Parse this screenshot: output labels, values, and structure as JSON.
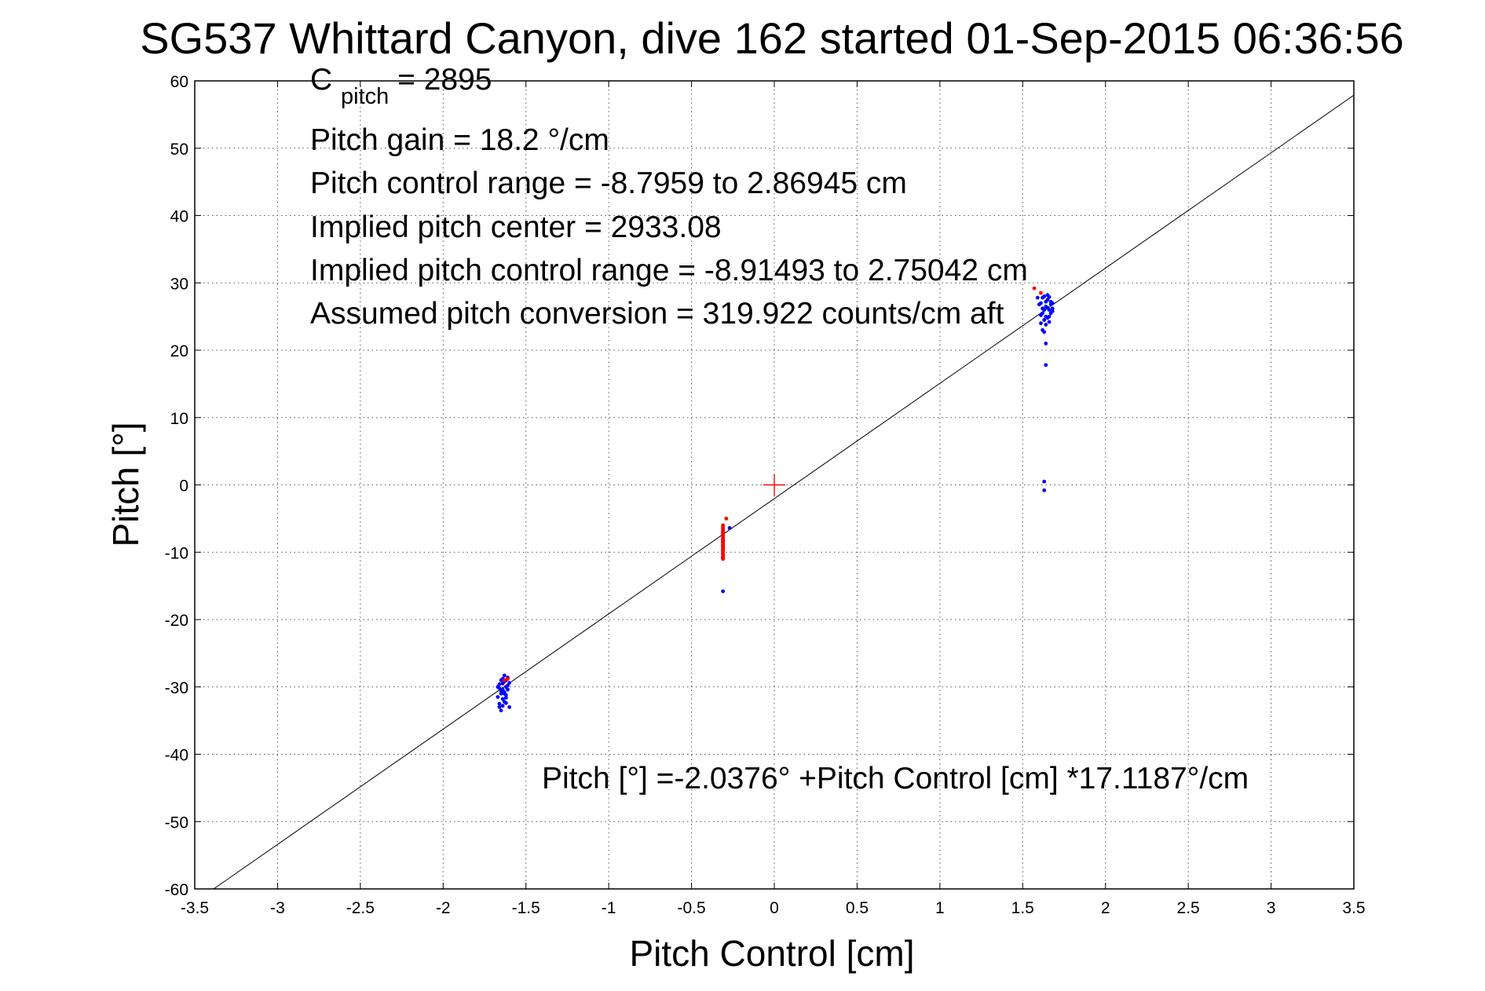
{
  "chart_data": {
    "type": "scatter",
    "title": "SG537 Whittard Canyon, dive 162 started 01-Sep-2015 06:36:56",
    "xlabel": "Pitch Control [cm]",
    "ylabel": "Pitch [°]",
    "xlim": [
      -3.5,
      3.5
    ],
    "ylim": [
      -60,
      60
    ],
    "xticks": [
      -3.5,
      -3,
      -2.5,
      -2,
      -1.5,
      -1,
      -0.5,
      0,
      0.5,
      1,
      1.5,
      2,
      2.5,
      3,
      3.5
    ],
    "xtick_labels": [
      "-3.5",
      "-3",
      "-2.5",
      "-2",
      "-1.5",
      "-1",
      "-0.5",
      "0",
      "0.5",
      "1",
      "1.5",
      "2",
      "2.5",
      "3",
      "3.5"
    ],
    "yticks": [
      -60,
      -50,
      -40,
      -30,
      -20,
      -10,
      0,
      10,
      20,
      30,
      40,
      50,
      60
    ],
    "ytick_labels": [
      "-60",
      "-50",
      "-40",
      "-30",
      "-20",
      "-10",
      "0",
      "10",
      "20",
      "30",
      "40",
      "50",
      "60"
    ],
    "grid": true,
    "annotations": {
      "cpitch_main": "C",
      "cpitch_sub": "pitch",
      "cpitch_value": " = 2895",
      "line2": "Pitch gain = 18.2 °/cm",
      "line3": "Pitch control range = -8.7959 to 2.86945 cm",
      "line4": "Implied pitch center = 2933.08",
      "line5": "Implied pitch control range = -8.91493 to 2.75042 cm",
      "line6": "Assumed pitch conversion = 319.922 counts/cm aft",
      "fit_equation": "Pitch [°] =-2.0376° +Pitch Control [cm] *17.1187°/cm"
    },
    "fit_line": {
      "intercept": -2.0376,
      "slope": 17.1187,
      "color": "#000000"
    },
    "center_marker": {
      "x": 0,
      "y": 0,
      "color": "#ff0000"
    },
    "series": [
      {
        "color": "#0000ff",
        "points": [
          [
            -1.66,
            -30.2
          ],
          [
            -1.65,
            -31.0
          ],
          [
            -1.64,
            -29.5
          ],
          [
            -1.63,
            -30.8
          ],
          [
            -1.62,
            -29.0
          ],
          [
            -1.61,
            -28.6
          ],
          [
            -1.66,
            -32.5
          ],
          [
            -1.65,
            -33.5
          ],
          [
            -1.64,
            -31.8
          ],
          [
            -1.63,
            -32.2
          ],
          [
            -1.62,
            -30.0
          ],
          [
            -1.61,
            -29.8
          ],
          [
            -1.66,
            -29.6
          ],
          [
            -1.65,
            -30.6
          ],
          [
            -1.64,
            -30.4
          ],
          [
            -1.63,
            -29.2
          ],
          [
            -1.62,
            -31.2
          ],
          [
            -1.6,
            -33.0
          ],
          [
            -1.67,
            -31.5
          ],
          [
            -1.66,
            -33.0
          ],
          [
            -1.64,
            -28.8
          ],
          [
            -1.63,
            -28.3
          ],
          [
            -1.62,
            -31.6
          ],
          [
            -1.65,
            -29.0
          ],
          [
            -1.61,
            -30.4
          ],
          [
            -1.67,
            -30.0
          ],
          [
            -1.6,
            -29.4
          ],
          [
            -1.63,
            -31.0
          ],
          [
            -1.64,
            -32.8
          ],
          [
            -1.62,
            -32.4
          ],
          [
            -0.31,
            -7.0
          ],
          [
            -0.31,
            -8.0
          ],
          [
            -0.31,
            -8.5
          ],
          [
            -0.31,
            -9.0
          ],
          [
            -0.31,
            -9.6
          ],
          [
            -0.31,
            -10.2
          ],
          [
            -0.31,
            -10.8
          ],
          [
            -0.31,
            -7.5
          ],
          [
            -0.31,
            -9.3
          ],
          [
            -0.31,
            -15.8
          ],
          [
            -0.27,
            -6.4
          ],
          [
            1.61,
            27.0
          ],
          [
            1.62,
            25.5
          ],
          [
            1.63,
            28.0
          ],
          [
            1.64,
            26.5
          ],
          [
            1.65,
            24.8
          ],
          [
            1.66,
            26.0
          ],
          [
            1.67,
            27.2
          ],
          [
            1.68,
            25.8
          ],
          [
            1.62,
            27.8
          ],
          [
            1.63,
            24.5
          ],
          [
            1.64,
            23.8
          ],
          [
            1.65,
            27.5
          ],
          [
            1.66,
            25.0
          ],
          [
            1.67,
            26.8
          ],
          [
            1.68,
            27.0
          ],
          [
            1.61,
            25.2
          ],
          [
            1.62,
            26.2
          ],
          [
            1.63,
            26.0
          ],
          [
            1.64,
            25.0
          ],
          [
            1.65,
            26.3
          ],
          [
            1.66,
            27.9
          ],
          [
            1.67,
            25.5
          ],
          [
            1.68,
            26.2
          ],
          [
            1.6,
            26.8
          ],
          [
            1.63,
            22.7
          ],
          [
            1.61,
            24.0
          ],
          [
            1.62,
            23.0
          ],
          [
            1.64,
            21.0
          ],
          [
            1.64,
            17.8
          ],
          [
            1.63,
            0.5
          ],
          [
            1.63,
            -0.8
          ],
          [
            1.59,
            27.8
          ],
          [
            1.66,
            24.2
          ],
          [
            1.65,
            28.2
          ],
          [
            1.64,
            27.2
          ]
        ]
      },
      {
        "color": "#ff0000",
        "points": [
          [
            -1.63,
            -29.0
          ],
          [
            -1.61,
            -28.8
          ],
          [
            -0.31,
            -9.0
          ],
          [
            -0.31,
            -9.6
          ],
          [
            -0.31,
            -10.0
          ],
          [
            -0.31,
            -8.2
          ],
          [
            -0.31,
            -7.6
          ],
          [
            -0.31,
            -6.4
          ],
          [
            -0.31,
            -7.0
          ],
          [
            -0.31,
            -9.2
          ],
          [
            -0.31,
            -8.6
          ],
          [
            -0.31,
            -10.4
          ],
          [
            -0.31,
            -9.8
          ],
          [
            -0.31,
            -10.8
          ],
          [
            -0.31,
            -7.3
          ],
          [
            -0.31,
            -8.8
          ],
          [
            -0.31,
            -9.4
          ],
          [
            -0.31,
            -8.0
          ],
          [
            -0.31,
            -6.8
          ],
          [
            -0.31,
            -10.6
          ],
          [
            -0.31,
            -11.0
          ],
          [
            -0.31,
            -6.2
          ],
          [
            -0.31,
            -9.9
          ],
          [
            -0.31,
            -8.4
          ],
          [
            -0.31,
            -7.8
          ],
          [
            -0.31,
            -10.2
          ],
          [
            -0.31,
            -9.1
          ],
          [
            -0.31,
            -8.9
          ],
          [
            -0.31,
            -7.1
          ],
          [
            -0.31,
            -10.9
          ],
          [
            -0.31,
            -6.6
          ],
          [
            -0.31,
            -9.7
          ],
          [
            -0.31,
            -8.3
          ],
          [
            -0.31,
            -7.4
          ],
          [
            -0.31,
            -10.7
          ],
          [
            -0.31,
            -6.0
          ],
          [
            -0.29,
            -5.0
          ],
          [
            1.57,
            29.2
          ],
          [
            1.61,
            28.5
          ]
        ]
      }
    ]
  }
}
